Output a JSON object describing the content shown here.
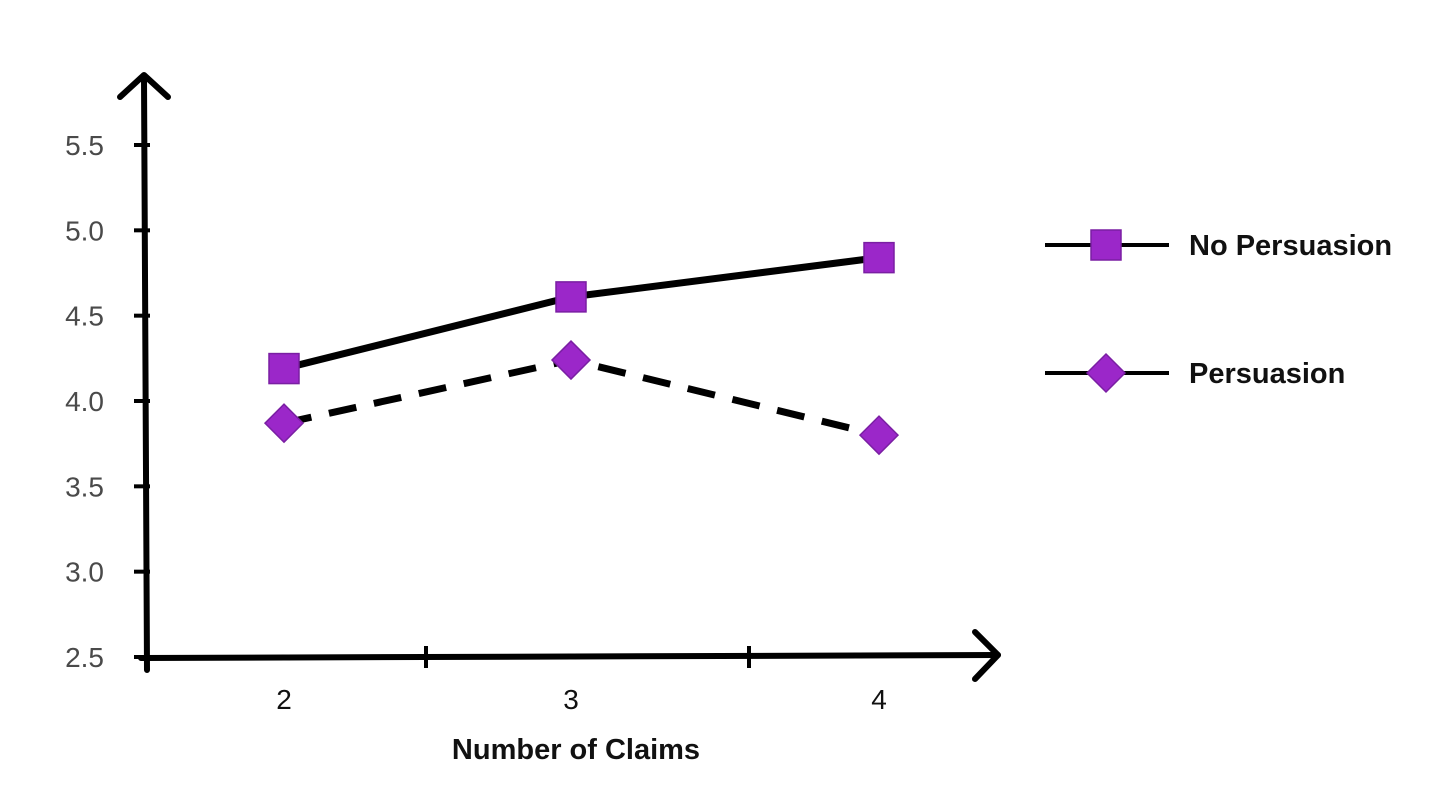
{
  "chart_data": {
    "type": "line",
    "title": "",
    "xlabel": "Number of Claims",
    "ylabel": "",
    "categories": [
      "2",
      "3",
      "4"
    ],
    "y_ticks": [
      "2.5",
      "3.0",
      "3.5",
      "4.0",
      "4.5",
      "5.0",
      "5.5"
    ],
    "ylim": [
      2.5,
      5.5
    ],
    "grid": false,
    "legend_position": "right",
    "series": [
      {
        "name": "No Persuasion",
        "values": [
          4.19,
          4.61,
          4.84
        ],
        "marker": "square",
        "line_style": "solid"
      },
      {
        "name": "Persuasion",
        "values": [
          3.87,
          4.24,
          3.8
        ],
        "marker": "diamond",
        "line_style": "dashed"
      }
    ],
    "colors": {
      "marker": "#9b27c9",
      "marker_stroke": "#7a1fa3",
      "line": "#000000",
      "axis": "#000000"
    }
  }
}
